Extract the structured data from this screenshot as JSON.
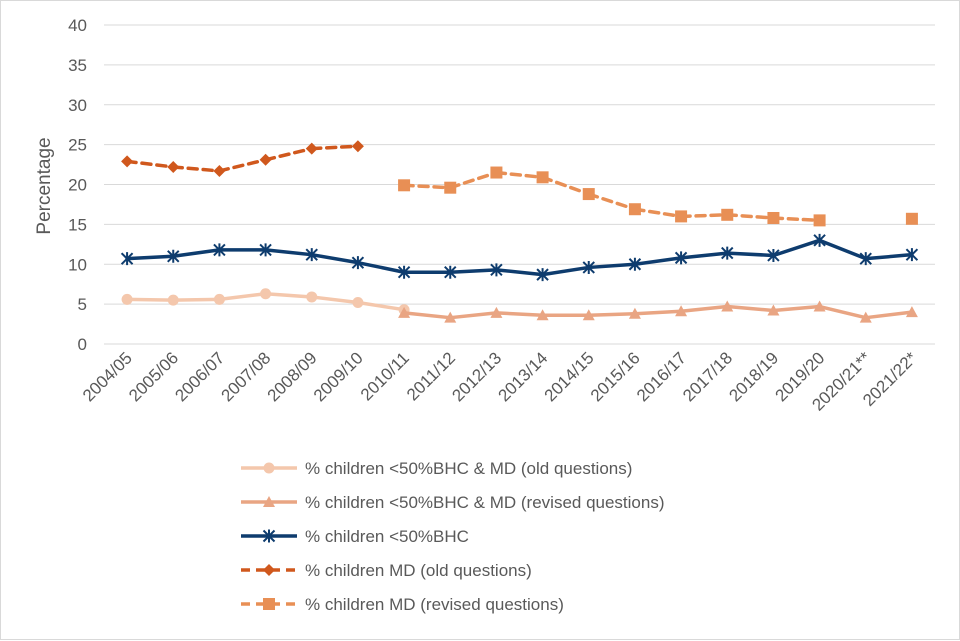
{
  "chart_data": {
    "type": "line",
    "title": "",
    "xlabel": "",
    "ylabel": "Percentage",
    "ylim": [
      0,
      40
    ],
    "yticks": [
      "0",
      "5",
      "10",
      "15",
      "20",
      "25",
      "30",
      "35",
      "40"
    ],
    "ytick_values": [
      0,
      5,
      10,
      15,
      20,
      25,
      30,
      35,
      40
    ],
    "grid": true,
    "legend_position": "bottom",
    "categories": [
      "2004/05",
      "2005/06",
      "2006/07",
      "2007/08",
      "2008/09",
      "2009/10",
      "2010/11",
      "2011/12",
      "2012/13",
      "2013/14",
      "2014/15",
      "2015/16",
      "2016/17",
      "2017/18",
      "2018/19",
      "2019/20",
      "2020/21**",
      "2021/22*"
    ],
    "series": [
      {
        "name": "% children <50%BHC & MD (old questions)",
        "color": "#f4c7ac",
        "marker": "circle",
        "dash": "solid",
        "values": [
          5.6,
          5.5,
          5.6,
          6.3,
          5.9,
          5.2,
          4.3,
          null,
          null,
          null,
          null,
          null,
          null,
          null,
          null,
          null,
          null,
          null
        ]
      },
      {
        "name": "% children <50%BHC & MD (revised questions)",
        "color": "#e9a583",
        "marker": "triangle",
        "dash": "solid",
        "values": [
          null,
          null,
          null,
          null,
          null,
          null,
          3.9,
          3.3,
          3.9,
          3.6,
          3.6,
          3.8,
          4.1,
          4.7,
          4.2,
          4.7,
          3.3,
          4.0
        ]
      },
      {
        "name": "% children <50%BHC",
        "color": "#0e3c6e",
        "marker": "asterisk",
        "dash": "solid",
        "values": [
          10.7,
          11.0,
          11.8,
          11.8,
          11.2,
          10.2,
          9.0,
          9.0,
          9.3,
          8.7,
          9.6,
          10.0,
          10.8,
          11.4,
          11.1,
          13.0,
          10.7,
          11.2
        ]
      },
      {
        "name": "% children MD (old questions)",
        "color": "#d0581d",
        "marker": "diamond",
        "dash": "dashed",
        "values": [
          22.9,
          22.2,
          21.7,
          23.1,
          24.5,
          24.8,
          null,
          null,
          null,
          null,
          null,
          null,
          null,
          null,
          null,
          null,
          null,
          null
        ]
      },
      {
        "name": "% children MD (revised questions)",
        "color": "#e88f55",
        "marker": "square",
        "dash": "dashed",
        "values": [
          null,
          null,
          null,
          null,
          null,
          null,
          19.9,
          19.6,
          21.5,
          20.9,
          18.8,
          16.9,
          16.0,
          16.2,
          15.8,
          15.5,
          null,
          15.7
        ]
      }
    ]
  }
}
